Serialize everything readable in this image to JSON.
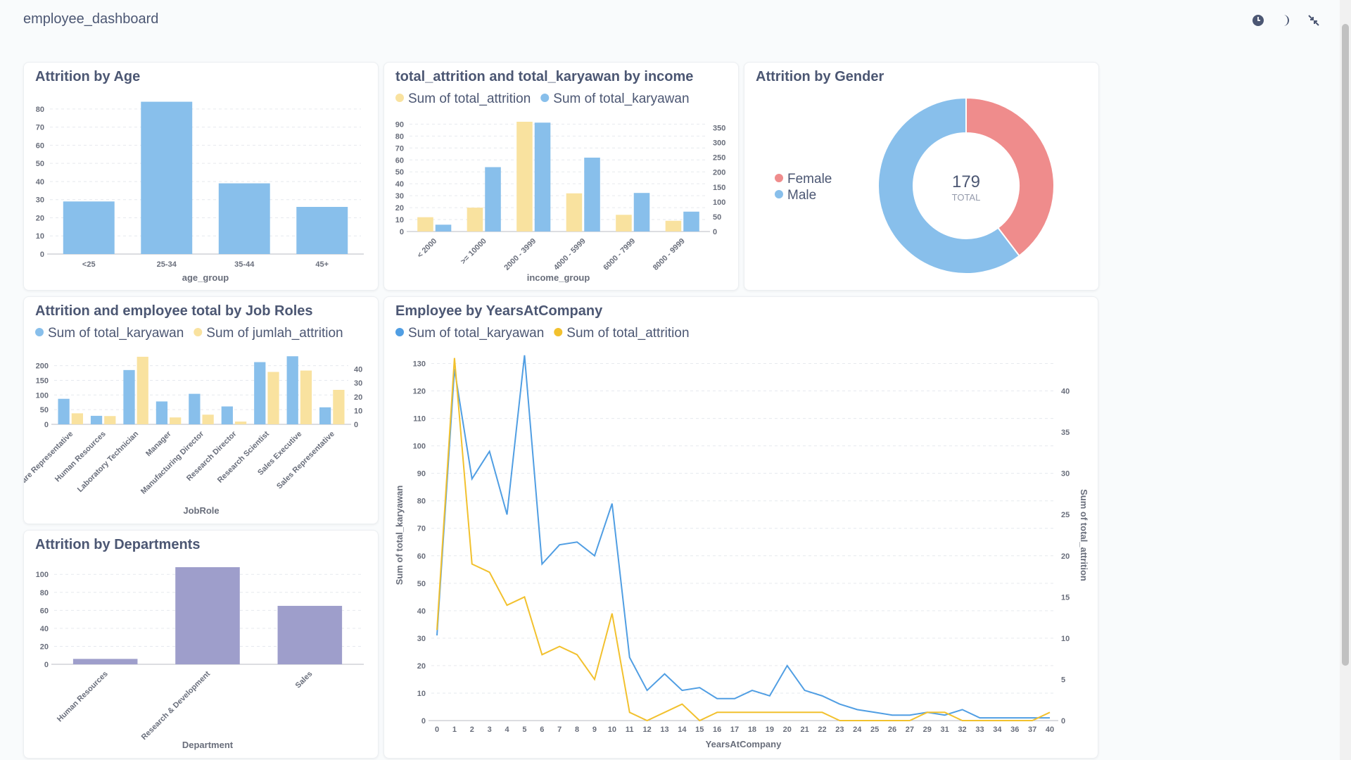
{
  "title": "employee_dashboard",
  "chart_data": [
    {
      "type": "bar",
      "title": "Attrition by Age",
      "categories": [
        "<25",
        "25-34",
        "35-44",
        "45+"
      ],
      "values": [
        29,
        84,
        39,
        26
      ],
      "color": "#88bfeb",
      "xlabel": "age_group",
      "ylim": [
        0,
        85
      ],
      "yticks": [
        0,
        10,
        20,
        30,
        40,
        50,
        60,
        70,
        80
      ],
      "grid": true
    },
    {
      "type": "bar",
      "title": "total_attrition and total_karyawan by income",
      "categories": [
        "< 2000",
        ">= 10000",
        "2000 - 3999",
        "4000 - 5999",
        "6000 - 7999",
        "8000 - 9999"
      ],
      "series": [
        {
          "name": "Sum of total_attrition",
          "color": "#f9e29f",
          "values": [
            12,
            20,
            92,
            32,
            14,
            9
          ]
        },
        {
          "name": "Sum of total_karyawan",
          "color": "#88bfeb",
          "values": [
            23,
            217,
            367,
            249,
            130,
            67
          ],
          "axis": "y2"
        }
      ],
      "xlabel": "income_group",
      "ylim": [
        0,
        92
      ],
      "yticks": [
        0,
        10,
        20,
        30,
        40,
        50,
        60,
        70,
        80,
        90
      ],
      "y2lim": [
        0,
        370
      ],
      "y2ticks": [
        0,
        50,
        100,
        150,
        200,
        250,
        300,
        350
      ],
      "grid": true,
      "legend": "top"
    },
    {
      "type": "pie",
      "title": "Attrition by Gender",
      "categories": [
        "Female",
        "Male"
      ],
      "values": [
        71,
        108
      ],
      "colors": [
        "#ef8c8c",
        "#88bfeb"
      ],
      "total": 179,
      "total_label": "TOTAL",
      "legend": "left"
    },
    {
      "type": "bar",
      "title": "Attrition and employee total by Job Roles",
      "categories": [
        "Healthcare Representative",
        "Human Resources",
        "Laboratory Technician",
        "Manager",
        "Manufacturing Director",
        "Research Director",
        "Research Scientist",
        "Sales Executive",
        "Sales Representative"
      ],
      "series": [
        {
          "name": "Sum of total_karyawan",
          "color": "#88bfeb",
          "values": [
            87,
            29,
            185,
            78,
            104,
            61,
            212,
            232,
            58
          ]
        },
        {
          "name": "Sum of jumlah_attrition",
          "color": "#f9e29f",
          "values": [
            8,
            6,
            49,
            5,
            7,
            2,
            38,
            39,
            25
          ],
          "axis": "y2"
        }
      ],
      "xlabel": "JobRole",
      "ylim": [
        0,
        235
      ],
      "yticks": [
        0,
        50,
        100,
        150,
        200
      ],
      "y2lim": [
        0,
        50
      ],
      "y2ticks": [
        0,
        10,
        20,
        30,
        40
      ],
      "grid": true,
      "legend": "top"
    },
    {
      "type": "bar",
      "title": "Attrition by Departments",
      "categories": [
        "Human Resources",
        "Research & Development",
        "Sales"
      ],
      "values": [
        6,
        108,
        65
      ],
      "color": "#9e9ecb",
      "xlabel": "Department",
      "ylim": [
        0,
        108
      ],
      "yticks": [
        0,
        20,
        40,
        60,
        80,
        100
      ],
      "grid": true
    },
    {
      "type": "line",
      "title": "Employee by YearsAtCompany",
      "categories": [
        0,
        1,
        2,
        3,
        4,
        5,
        6,
        7,
        8,
        9,
        10,
        11,
        12,
        13,
        14,
        15,
        16,
        17,
        18,
        19,
        20,
        21,
        22,
        23,
        24,
        25,
        26,
        27,
        29,
        31,
        32,
        33,
        34,
        36,
        37,
        40
      ],
      "series": [
        {
          "name": "Sum of total_karyawan",
          "color": "#509ee3",
          "values": [
            31,
            128,
            88,
            98,
            75,
            133,
            57,
            64,
            65,
            60,
            79,
            23,
            11,
            17,
            11,
            12,
            8,
            8,
            11,
            9,
            20,
            11,
            9,
            6,
            4,
            3,
            2,
            2,
            3,
            2,
            4,
            1,
            1,
            1,
            1,
            1
          ]
        },
        {
          "name": "Sum of total_attrition",
          "color": "#f2c12e",
          "values": [
            11,
            44,
            19,
            18,
            14,
            15,
            8,
            9,
            8,
            5,
            13,
            1,
            0,
            1,
            2,
            0,
            1,
            1,
            1,
            1,
            1,
            1,
            1,
            0,
            0,
            0,
            0,
            0,
            1,
            1,
            0,
            0,
            0,
            0,
            0,
            1
          ],
          "axis": "y2"
        }
      ],
      "xlabel": "YearsAtCompany",
      "ylabel": "Sum of total_karyawan",
      "y2label": "Sum of total_attrition",
      "ylim": [
        0,
        135
      ],
      "yticks": [
        0,
        10,
        20,
        30,
        40,
        50,
        60,
        70,
        80,
        90,
        100,
        110,
        120,
        130
      ],
      "y2lim": [
        0,
        45
      ],
      "y2ticks": [
        0,
        5,
        10,
        15,
        20,
        25,
        30,
        35,
        40
      ],
      "grid": true,
      "legend": "top"
    }
  ]
}
